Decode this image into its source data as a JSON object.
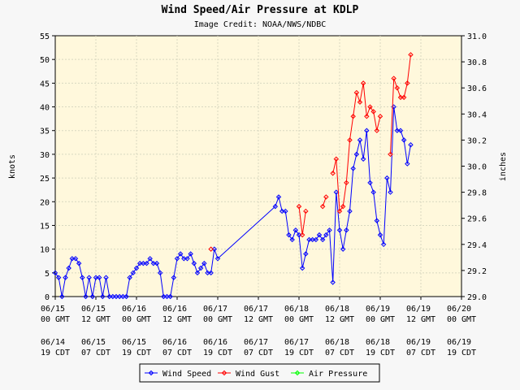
{
  "chart_data": {
    "type": "line",
    "title": "Wind Speed/Air Pressure at KDLP",
    "subtitle": "Image Credit: NOAA/NWS/NDBC",
    "ylabel": "knots",
    "y2label": "inches",
    "xlim": [
      "06/15 00",
      "06/20 00"
    ],
    "xticks": [
      {
        "value": "06/15 00",
        "label": "06/15 00 GMT"
      },
      {
        "value": "06/15 12",
        "label": "06/15 12 GMT"
      },
      {
        "value": "06/16 00",
        "label": "06/16 00 GMT"
      },
      {
        "value": "06/16 12",
        "label": "06/16 12 GMT"
      },
      {
        "value": "06/17 00",
        "label": "06/17 00 GMT"
      },
      {
        "value": "06/17 12",
        "label": "06/17 12 GMT"
      },
      {
        "value": "06/18 00",
        "label": "06/18 00 GMT"
      },
      {
        "value": "06/18 12",
        "label": "06/18 12 GMT"
      },
      {
        "value": "06/19 00",
        "label": "06/19 00 GMT"
      },
      {
        "value": "06/19 12",
        "label": "06/19 12 GMT"
      },
      {
        "value": "06/20 00",
        "label": "06/20 00 GMT"
      }
    ],
    "x2ticks": [
      {
        "value": "06/15 00",
        "label": "06/14 19 CDT"
      },
      {
        "value": "06/15 12",
        "label": "06/15 07 CDT"
      },
      {
        "value": "06/16 00",
        "label": "06/15 19 CDT"
      },
      {
        "value": "06/16 12",
        "label": "06/16 07 CDT"
      },
      {
        "value": "06/17 00",
        "label": "06/16 19 CDT"
      },
      {
        "value": "06/17 12",
        "label": "06/17 07 CDT"
      },
      {
        "value": "06/18 00",
        "label": "06/17 19 CDT"
      },
      {
        "value": "06/18 12",
        "label": "06/18 07 CDT"
      },
      {
        "value": "06/19 00",
        "label": "06/18 19 CDT"
      },
      {
        "value": "06/19 12",
        "label": "06/19 07 CDT"
      },
      {
        "value": "06/20 00",
        "label": "06/19 19 CDT"
      }
    ],
    "ylim": [
      0,
      55
    ],
    "yticks": [
      0,
      5,
      10,
      15,
      20,
      25,
      30,
      35,
      40,
      45,
      50,
      55
    ],
    "y2lim": [
      29,
      31
    ],
    "y2ticks": [
      {
        "value": 29,
        "label": "29.0"
      },
      29.2,
      29.4,
      29.6,
      29.8,
      {
        "value": 30,
        "label": "30.0"
      },
      30.2,
      30.4,
      30.6,
      30.8,
      {
        "value": 31,
        "label": "31.0"
      }
    ],
    "grid": true,
    "series": [
      {
        "name": "Wind Speed",
        "color": "#0000ff",
        "x": [
          "06/15 00",
          "06/15 01",
          "06/15 02",
          "06/15 03",
          "06/15 04",
          "06/15 05",
          "06/15 06",
          "06/15 07",
          "06/15 08",
          "06/15 09",
          "06/15 10",
          "06/15 11",
          "06/15 12",
          "06/15 13",
          "06/15 14",
          "06/15 15",
          "06/15 16",
          "06/15 17",
          "06/15 18",
          "06/15 19",
          "06/15 20",
          "06/15 21",
          "06/15 22",
          "06/15 23",
          "06/16 00",
          "06/16 01",
          "06/16 02",
          "06/16 03",
          "06/16 04",
          "06/16 05",
          "06/16 06",
          "06/16 07",
          "06/16 08",
          "06/16 09",
          "06/16 10",
          "06/16 11",
          "06/16 12",
          "06/16 13",
          "06/16 14",
          "06/16 15",
          "06/16 16",
          "06/16 17",
          "06/16 18",
          "06/16 19",
          "06/16 20",
          "06/16 21",
          "06/16 22",
          "06/16 23",
          "06/17 00",
          "06/17 17",
          "06/17 18",
          "06/17 19",
          "06/17 20",
          "06/17 21",
          "06/17 22",
          "06/17 23",
          "06/18 00",
          "06/18 01",
          "06/18 02",
          "06/18 03",
          "06/18 04",
          "06/18 05",
          "06/18 06",
          "06/18 07",
          "06/18 08",
          "06/18 09",
          "06/18 10",
          "06/18 11",
          "06/18 12",
          "06/18 13",
          "06/18 14",
          "06/18 15",
          "06/18 16",
          "06/18 17",
          "06/18 18",
          "06/18 19",
          "06/18 20",
          "06/18 21",
          "06/18 22",
          "06/18 23",
          "06/19 00",
          "06/19 01",
          "06/19 02",
          "06/19 03",
          "06/19 04",
          "06/19 05",
          "06/19 06",
          "06/19 07",
          "06/19 08",
          "06/19 09"
        ],
        "values": [
          5,
          4,
          0,
          4,
          6,
          8,
          8,
          7,
          4,
          0,
          4,
          0,
          4,
          4,
          0,
          4,
          0,
          0,
          0,
          0,
          0,
          0,
          4,
          5,
          6,
          7,
          7,
          7,
          8,
          7,
          7,
          5,
          0,
          0,
          0,
          4,
          8,
          9,
          8,
          8,
          9,
          7,
          5,
          6,
          7,
          5,
          5,
          10,
          8,
          19,
          21,
          18,
          18,
          13,
          12,
          14,
          13,
          6,
          9,
          12,
          12,
          12,
          13,
          12,
          13,
          14,
          3,
          22,
          14,
          10,
          14,
          18,
          27,
          30,
          33,
          29,
          35,
          24,
          22,
          16,
          13,
          11,
          25,
          22,
          40,
          35,
          35,
          33,
          28,
          32
        ]
      },
      {
        "name": "Wind Gust",
        "color": "#ff0000",
        "x": [
          "06/16 22",
          "06/16 23",
          "06/18 00",
          "06/18 01",
          "06/18 02",
          "06/18 03",
          "06/18 07",
          "06/18 08",
          "06/18 09",
          "06/18 10",
          "06/18 11",
          "06/18 12",
          "06/18 13",
          "06/18 14",
          "06/18 15",
          "06/18 16",
          "06/18 17",
          "06/18 18",
          "06/18 19",
          "06/18 20",
          "06/18 21",
          "06/18 22",
          "06/18 23",
          "06/19 00",
          "06/19 01",
          "06/19 03",
          "06/19 04",
          "06/19 05",
          "06/19 06",
          "06/19 07",
          "06/19 08",
          "06/19 09"
        ],
        "values": [
          10,
          null,
          19,
          13,
          18,
          null,
          19,
          21,
          null,
          26,
          29,
          18,
          19,
          24,
          33,
          38,
          43,
          41,
          45,
          38,
          40,
          39,
          35,
          38,
          null,
          30,
          46,
          44,
          42,
          42,
          45,
          51
        ]
      },
      {
        "name": "Air Pressure",
        "color": "#00ff00",
        "axis": "y2",
        "x": [],
        "values": []
      }
    ]
  }
}
